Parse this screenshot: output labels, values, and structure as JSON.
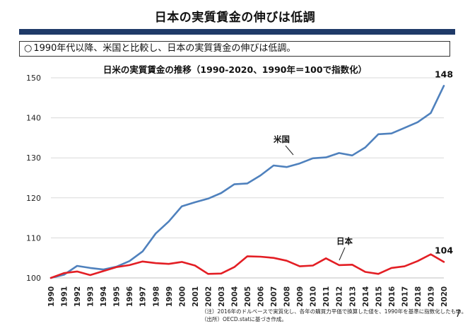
{
  "slide": {
    "title": "日本の実質賃金の伸びは低調",
    "summary_mark": "○",
    "summary": "1990年代以降、米国と比較し、日本の実質賃金の伸びは低調。",
    "notes": [
      "（注）2016年のドルベースで実質化し、各年の購買力平価で換算した値を、1990年を基準に指数化したもの。",
      "（出所）OECD.statに基づき作成。"
    ],
    "page_number": "7"
  },
  "chart_data": {
    "type": "line",
    "title": "日米の実質賃金の推移（1990-2020、1990年＝100で指数化）",
    "xlabel": "",
    "ylabel": "",
    "ylim": [
      100,
      150
    ],
    "yticks": [
      100,
      110,
      120,
      130,
      140,
      150
    ],
    "grid": true,
    "legend": "none",
    "categories": [
      "1990",
      "1991",
      "1992",
      "1993",
      "1994",
      "1995",
      "1996",
      "1997",
      "1998",
      "1999",
      "2000",
      "2001",
      "2002",
      "2003",
      "2004",
      "2005",
      "2006",
      "2007",
      "2008",
      "2009",
      "2010",
      "2011",
      "2012",
      "2013",
      "2014",
      "2015",
      "2016",
      "2017",
      "2018",
      "2019",
      "2020"
    ],
    "series": [
      {
        "name": "米国",
        "color": "#4f81bd",
        "values": [
          100.0,
          100.8,
          103.0,
          102.5,
          102.1,
          102.8,
          104.2,
          106.6,
          111.1,
          114.1,
          117.9,
          118.9,
          119.8,
          121.2,
          123.4,
          123.6,
          125.6,
          128.1,
          127.7,
          128.6,
          129.9,
          130.1,
          131.2,
          130.6,
          132.6,
          135.9,
          136.1,
          137.5,
          138.9,
          141.2,
          148.0
        ],
        "end_label": "148"
      },
      {
        "name": "日本",
        "color": "#e31e24",
        "values": [
          100.0,
          101.2,
          101.6,
          100.7,
          101.7,
          102.7,
          103.2,
          104.1,
          103.7,
          103.5,
          104.0,
          103.1,
          101.0,
          101.1,
          102.7,
          105.4,
          105.3,
          105.0,
          104.3,
          102.9,
          103.1,
          104.9,
          103.2,
          103.3,
          101.5,
          101.0,
          102.5,
          102.9,
          104.2,
          105.9,
          104.0
        ],
        "end_label": "104"
      }
    ]
  }
}
